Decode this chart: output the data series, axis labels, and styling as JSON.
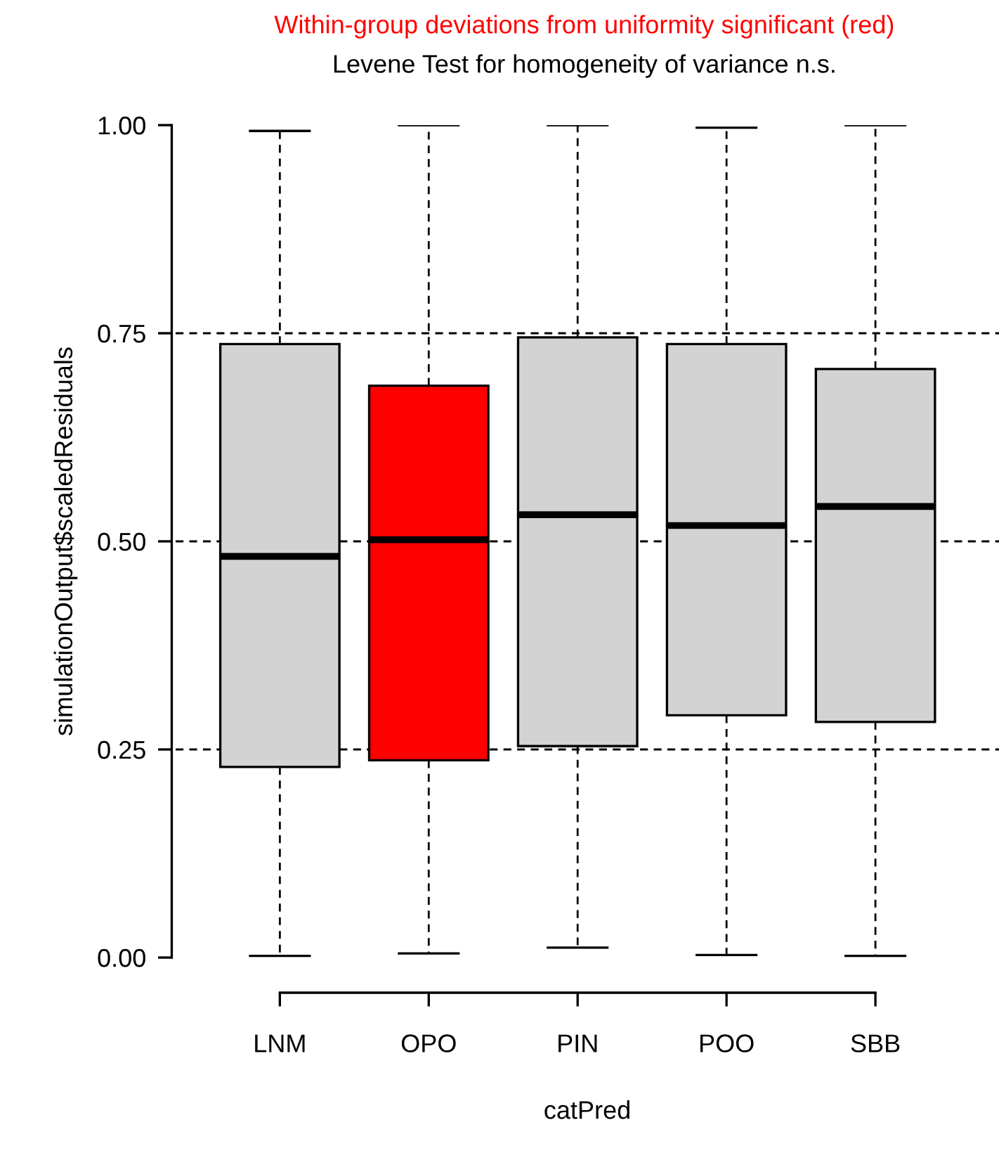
{
  "chart_data": {
    "type": "box",
    "title": "Within-group deviations from uniformity significant (red)",
    "subtitle": "Levene Test for homogeneity of variance n.s.",
    "xlabel": "catPred",
    "ylabel": "simulationOutput$scaledResiduals",
    "categories": [
      "LNM",
      "OPO",
      "PIN",
      "POO",
      "SBB"
    ],
    "colors": [
      "#d3d3d3",
      "#ff0000",
      "#d3d3d3",
      "#d3d3d3",
      "#d3d3d3"
    ],
    "boxes": [
      {
        "low": 0.002,
        "q1": 0.229,
        "median": 0.482,
        "q3": 0.737,
        "high": 0.993
      },
      {
        "low": 0.005,
        "q1": 0.237,
        "median": 0.502,
        "q3": 0.687,
        "high": 1.0
      },
      {
        "low": 0.012,
        "q1": 0.254,
        "median": 0.532,
        "q3": 0.745,
        "high": 1.0
      },
      {
        "low": 0.003,
        "q1": 0.291,
        "median": 0.519,
        "q3": 0.737,
        "high": 0.997
      },
      {
        "low": 0.002,
        "q1": 0.283,
        "median": 0.542,
        "q3": 0.707,
        "high": 1.0
      }
    ],
    "ylim": [
      0,
      1
    ],
    "yticks": [
      {
        "value": 0,
        "label": "0.00"
      },
      {
        "value": 0.25,
        "label": "0.25"
      },
      {
        "value": 0.5,
        "label": "0.50"
      },
      {
        "value": 0.75,
        "label": "0.75"
      },
      {
        "value": 1,
        "label": "1.00"
      }
    ],
    "ref_lines": [
      {
        "axis": "y",
        "value": 0.25,
        "color": "#000000",
        "line_style": "dashed"
      },
      {
        "axis": "y",
        "value": 0.5,
        "color": "#000000",
        "line_style": "dashed"
      },
      {
        "axis": "y",
        "value": 0.75,
        "color": "#000000",
        "line_style": "dashed"
      }
    ]
  }
}
